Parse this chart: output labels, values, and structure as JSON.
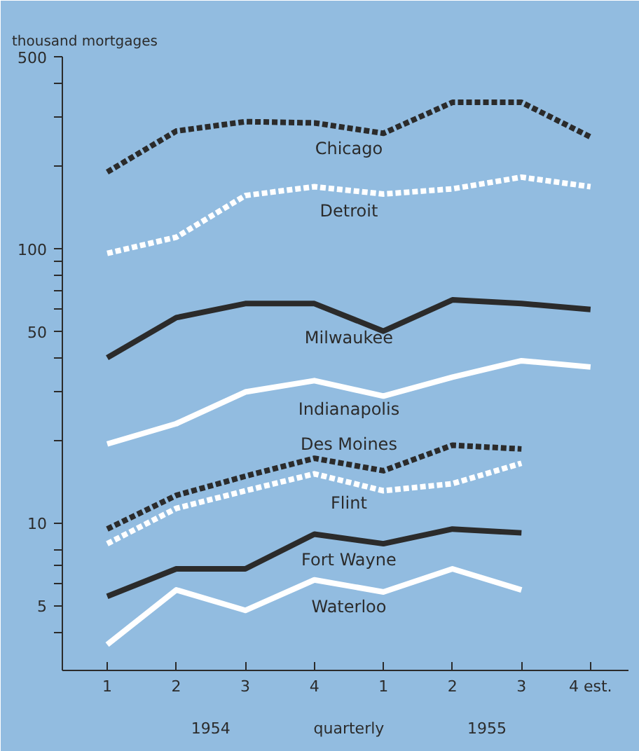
{
  "chart_data": {
    "type": "line",
    "ylabel": "thousand mortgages",
    "xlabel": "quarterly",
    "categories": [
      "1",
      "2",
      "3",
      "4",
      "1",
      "2",
      "3",
      "4 est."
    ],
    "log": "y",
    "ylim": [
      2.9,
      500
    ],
    "yticks": [
      5,
      10,
      50,
      100,
      500,
      {
        "value": 4,
        "label": null
      },
      {
        "value": 6,
        "label": null
      },
      {
        "value": 7,
        "label": null
      },
      {
        "value": 8,
        "label": null
      },
      {
        "value": 20,
        "label": null
      },
      {
        "value": 30,
        "label": null
      },
      {
        "value": 40,
        "label": null
      },
      {
        "value": 60,
        "label": null
      },
      {
        "value": 70,
        "label": null
      },
      {
        "value": 80,
        "label": null
      },
      {
        "value": 90,
        "label": null
      },
      {
        "value": 200,
        "label": null
      },
      {
        "value": 300,
        "label": null
      },
      {
        "value": 400,
        "label": null
      }
    ],
    "grid": false,
    "series": [
      {
        "name": "Chicago",
        "color": "#2b2b2b",
        "line_style": "dashed",
        "values": [
          190,
          268,
          290,
          287,
          263,
          341,
          341,
          255
        ]
      },
      {
        "name": "Detroit",
        "color": "#ffffff",
        "line_style": "dashed",
        "values": [
          96,
          110,
          156,
          168,
          158,
          165,
          182,
          168
        ]
      },
      {
        "name": "Milwaukee",
        "color": "#2b2b2b",
        "line_style": "solid",
        "values": [
          40,
          56,
          63,
          63,
          50,
          65,
          63,
          60
        ]
      },
      {
        "name": "Indianapolis",
        "color": "#ffffff",
        "line_style": "solid",
        "values": [
          19.4,
          23,
          30,
          33,
          29,
          34,
          39,
          37
        ]
      },
      {
        "name": "Des Moines",
        "color": "#2b2b2b",
        "line_style": "dashed",
        "values": [
          9.5,
          12.6,
          14.8,
          17.2,
          15.5,
          19.2,
          18.6,
          null
        ]
      },
      {
        "name": "Flint",
        "color": "#ffffff",
        "line_style": "dashed",
        "values": [
          8.4,
          11.3,
          13.1,
          15.1,
          13.1,
          13.9,
          16.5,
          null
        ]
      },
      {
        "name": "Fort Wayne",
        "color": "#2b2b2b",
        "line_style": "solid",
        "values": [
          5.4,
          6.8,
          6.8,
          9.1,
          8.4,
          9.5,
          9.2,
          null
        ]
      },
      {
        "name": "Waterloo",
        "color": "#ffffff",
        "line_style": "solid",
        "values": [
          3.6,
          5.7,
          4.8,
          6.2,
          5.6,
          6.8,
          5.7,
          null
        ]
      }
    ],
    "annotations": [
      "1954",
      "1955"
    ]
  }
}
